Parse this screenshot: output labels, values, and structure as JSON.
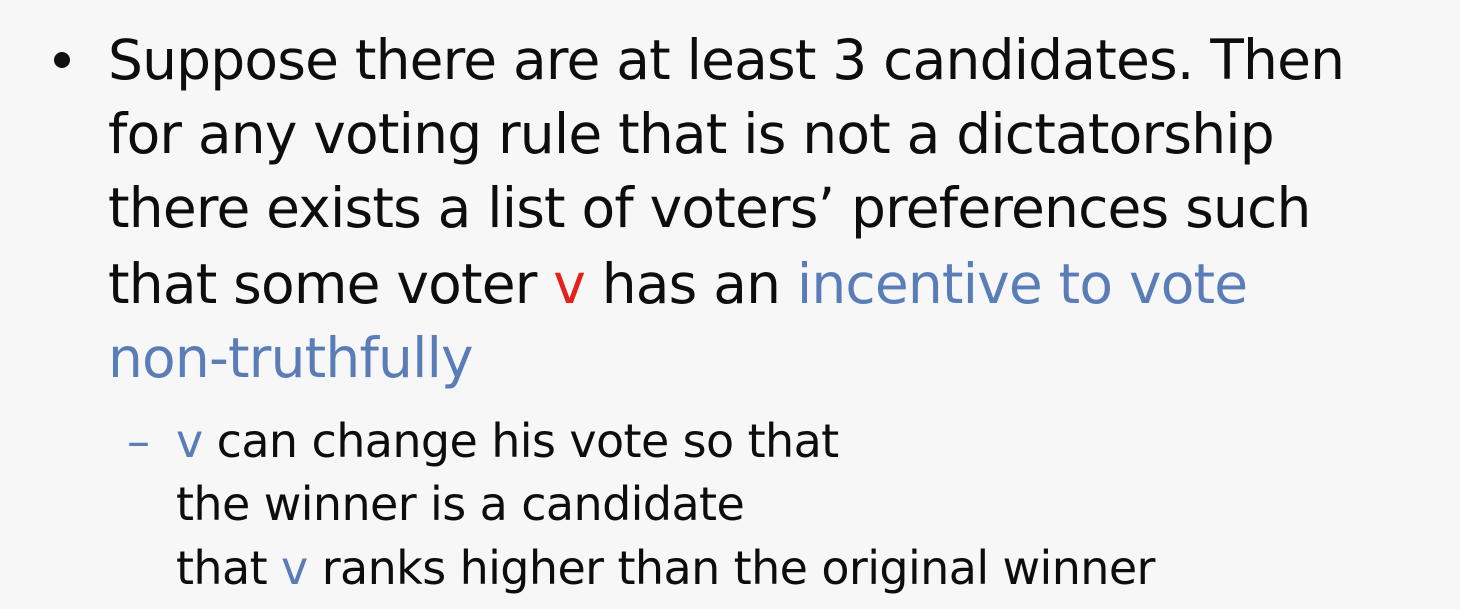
{
  "bullet": {
    "line1": "Suppose there are at least 3 candidates. Then",
    "line2": "for any voting rule that is not a dictatorship",
    "line3": "there exists a list of voters’ preferences such",
    "line4_a": "that some voter ",
    "line4_v": "v",
    "line4_b": " has an ",
    "line4_c": "incentive to vote",
    "line5": "non-truthfully"
  },
  "sub_bullet": {
    "dash": "–",
    "line1_v": "v",
    "line1_rest": " can change his vote so that",
    "line2": "the winner is a candidate",
    "line3_a": "that ",
    "line3_v": "v",
    "line3_b": " ranks higher than the original winner"
  },
  "colors": {
    "voter_red": "#e3221b",
    "highlight_blue": "#5a7db8",
    "text": "#0d0d0d",
    "background": "#f7f7f7"
  }
}
